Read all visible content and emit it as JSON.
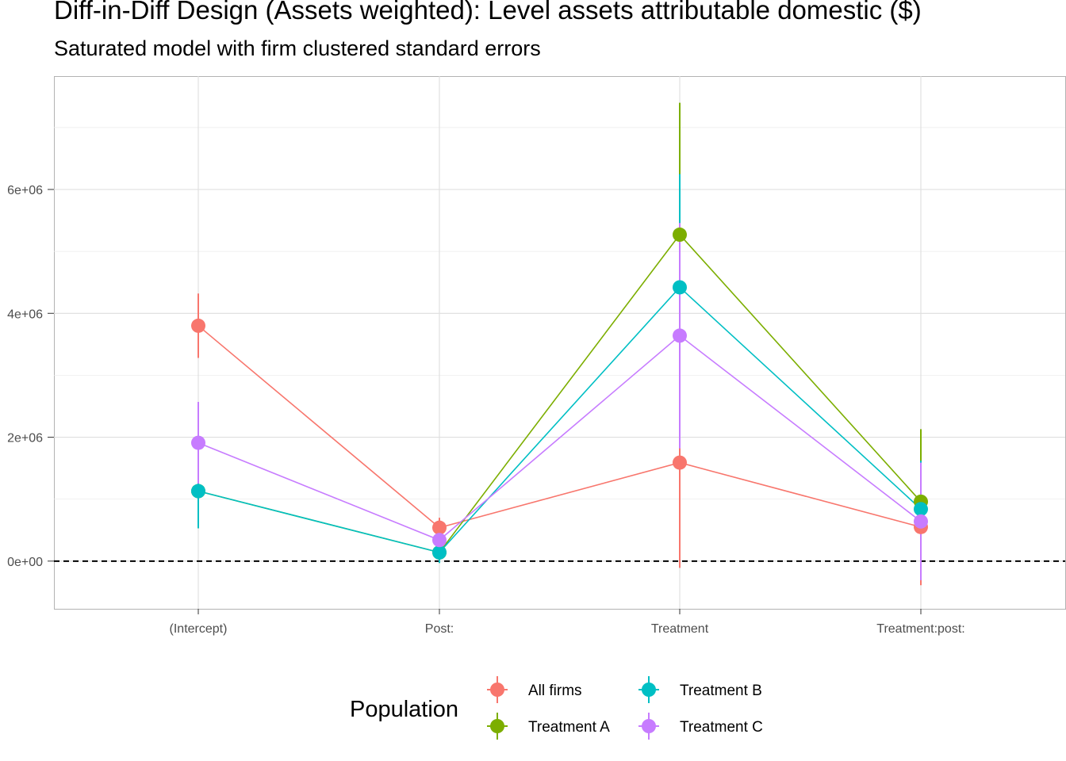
{
  "chart_data": {
    "type": "line",
    "title": "Diff-in-Diff Design (Assets weighted): Level assets attributable domestic  ($)",
    "subtitle": "Saturated model with firm clustered standard errors",
    "categories": [
      "(Intercept)",
      "Post:",
      "Treatment",
      "Treatment:post:"
    ],
    "ylim": [
      -770000,
      7830000
    ],
    "yticks": [
      0,
      2000000,
      4000000,
      6000000
    ],
    "ytick_labels": [
      "0e+00",
      "2e+06",
      "4e+06",
      "6e+06"
    ],
    "reference_line": 0,
    "grid": true,
    "legend": {
      "title": "Population",
      "placement": "bottom"
    },
    "series": [
      {
        "name": "All firms",
        "color": "#F8766D",
        "values": [
          3800000,
          540000,
          1590000,
          550000
        ],
        "lower": [
          3280000,
          380000,
          -110000,
          -390000
        ],
        "upper": [
          4320000,
          700000,
          3290000,
          1490000
        ]
      },
      {
        "name": "Treatment A",
        "color": "#7CAE00",
        "values": [
          1130000,
          140000,
          5270000,
          960000
        ],
        "lower": [
          530000,
          -30000,
          3140000,
          -200000
        ],
        "upper": [
          1730000,
          310000,
          7400000,
          2130000
        ]
      },
      {
        "name": "Treatment B",
        "color": "#00BFC4",
        "values": [
          1130000,
          140000,
          4420000,
          840000
        ],
        "lower": [
          530000,
          -30000,
          2590000,
          60000
        ],
        "upper": [
          1730000,
          310000,
          6250000,
          1620000
        ]
      },
      {
        "name": "Treatment C",
        "color": "#C77CFF",
        "values": [
          1910000,
          340000,
          3640000,
          640000
        ],
        "lower": [
          1250000,
          180000,
          1820000,
          -310000
        ],
        "upper": [
          2570000,
          500000,
          5460000,
          1590000
        ]
      }
    ]
  }
}
